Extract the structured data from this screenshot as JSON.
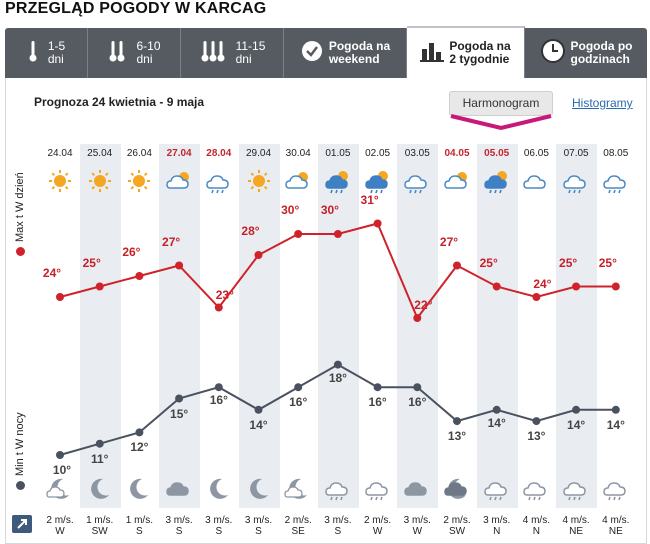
{
  "page_title": "PRZEGLĄD POGODY W KARCAG",
  "tabs": [
    {
      "icon": "thermometer-1-icon",
      "label": "1-5\ndni"
    },
    {
      "icon": "thermometer-2-icon",
      "label": "6-10\ndni"
    },
    {
      "icon": "thermometer-3-icon",
      "label": "11-15\ndni"
    },
    {
      "icon": "checkmark-icon",
      "label": "Pogoda na\nweekend"
    },
    {
      "icon": "bar-chart-icon",
      "label": "Pogoda na\n2 tygodnie",
      "active": true
    },
    {
      "icon": "clock-icon",
      "label": "Pogoda po\ngodzinach"
    }
  ],
  "subtitle": "Prognoza 24 kwietnia - 9 maja",
  "subtabs": {
    "harmonogram": "Harmonogram",
    "histogramy": "Histogramy"
  },
  "labels": {
    "max": "Max t W dzień",
    "min": "Min t W nocy"
  },
  "colors": {
    "max_line": "#d0222a",
    "min_line": "#4a5260",
    "stripe": "#e9edf1",
    "tabbar": "#565b62"
  },
  "chart_data": {
    "type": "line",
    "categories": [
      "24.04",
      "25.04",
      "26.04",
      "27.04",
      "28.04",
      "29.04",
      "30.04",
      "01.05",
      "02.05",
      "03.05",
      "04.05",
      "05.05",
      "06.05",
      "07.05",
      "08.05"
    ],
    "highlighted_dates": [
      "27.04",
      "28.04",
      "04.05",
      "05.05"
    ],
    "series": [
      {
        "name": "Max t W dzień",
        "values": [
          24,
          25,
          26,
          27,
          23,
          28,
          30,
          30,
          31,
          22,
          27,
          25,
          24,
          25,
          25
        ],
        "labels": [
          "24°",
          "25°",
          "26°",
          "27°",
          "23°",
          "28°",
          "30°",
          "30°",
          "31°",
          "22°",
          "27°",
          "25°",
          "24°",
          "25°",
          "25°"
        ]
      },
      {
        "name": "Min t W nocy",
        "values": [
          10,
          11,
          12,
          15,
          16,
          14,
          16,
          18,
          16,
          16,
          13,
          14,
          13,
          14,
          14
        ],
        "labels": [
          "10°",
          "11°",
          "12°",
          "15°",
          "16°",
          "14°",
          "16°",
          "18°",
          "16°",
          "16°",
          "13°",
          "14°",
          "13°",
          "14°",
          "14°"
        ]
      }
    ],
    "day_icons": [
      "sun",
      "sun",
      "sun",
      "partly-cloudy",
      "cloud-rain",
      "sun",
      "partly-cloudy",
      "storm",
      "storm",
      "cloud-rain",
      "partly-cloudy",
      "partly-rain",
      "cloud",
      "cloud-rain",
      "cloud-rain"
    ],
    "night_icons": [
      "moon-cloud",
      "moon",
      "moon",
      "cloud",
      "moon",
      "moon",
      "moon-cloud",
      "cloud-rain",
      "cloud-rain",
      "cloud",
      "storm",
      "cloud-rain",
      "cloud-rain",
      "cloud-rain",
      "cloud-rain"
    ],
    "wind": [
      {
        "speed": "2 m/s.",
        "dir": "W"
      },
      {
        "speed": "1 m/s.",
        "dir": "SW"
      },
      {
        "speed": "1 m/s.",
        "dir": "S"
      },
      {
        "speed": "3 m/s.",
        "dir": "S"
      },
      {
        "speed": "3 m/s.",
        "dir": "S"
      },
      {
        "speed": "3 m/s.",
        "dir": "S"
      },
      {
        "speed": "2 m/s.",
        "dir": "SE"
      },
      {
        "speed": "3 m/s.",
        "dir": "S"
      },
      {
        "speed": "2 m/s.",
        "dir": "W"
      },
      {
        "speed": "3 m/s.",
        "dir": "W"
      },
      {
        "speed": "2 m/s.",
        "dir": "SW"
      },
      {
        "speed": "3 m/s.",
        "dir": "N"
      },
      {
        "speed": "4 m/s.",
        "dir": "N"
      },
      {
        "speed": "4 m/s.",
        "dir": "NE"
      },
      {
        "speed": "4 m/s.",
        "dir": "NE"
      }
    ]
  }
}
